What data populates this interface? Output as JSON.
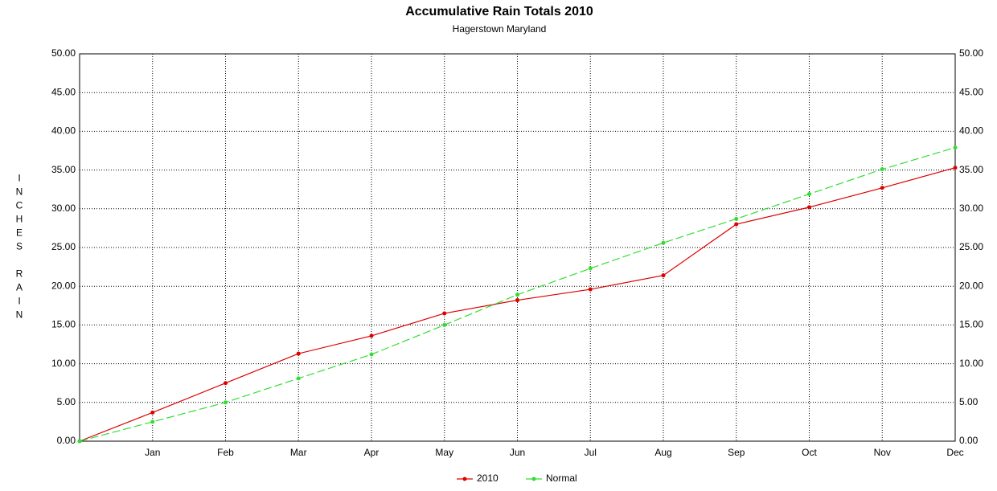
{
  "chart_data": {
    "type": "line",
    "title": "Accumulative Rain Totals 2010",
    "subtitle": "Hagerstown Maryland",
    "y_label": "INCHES RAIN",
    "categories": [
      null,
      "Jan",
      "Feb",
      "Mar",
      "Apr",
      "May",
      "Jun",
      "Jul",
      "Aug",
      "Sep",
      "Oct",
      "Nov",
      "Dec"
    ],
    "series": [
      {
        "name": "2010",
        "color": "#dd0000",
        "dashed": false,
        "values": [
          0,
          3.7,
          7.5,
          11.3,
          13.6,
          16.5,
          18.2,
          19.6,
          21.4,
          28.0,
          30.2,
          32.7,
          35.3
        ]
      },
      {
        "name": "Normal",
        "color": "#33dd33",
        "dashed": true,
        "values": [
          0,
          2.5,
          5.0,
          8.1,
          11.2,
          15.0,
          18.9,
          22.3,
          25.6,
          28.7,
          31.9,
          35.1,
          37.9
        ]
      }
    ],
    "ylim": [
      0,
      50
    ],
    "yticks": [
      {
        "value": 0,
        "label": "0.00"
      },
      {
        "value": 5,
        "label": "5.00"
      },
      {
        "value": 10,
        "label": "10.00"
      },
      {
        "value": 15,
        "label": "15.00"
      },
      {
        "value": 20,
        "label": "20.00"
      },
      {
        "value": 25,
        "label": "25.00"
      },
      {
        "value": 30,
        "label": "30.00"
      },
      {
        "value": 35,
        "label": "35.00"
      },
      {
        "value": 40,
        "label": "40.00"
      },
      {
        "value": 45,
        "label": "45.00"
      },
      {
        "value": 50,
        "label": "50.00"
      }
    ],
    "grid": true,
    "legend": "bottom"
  }
}
